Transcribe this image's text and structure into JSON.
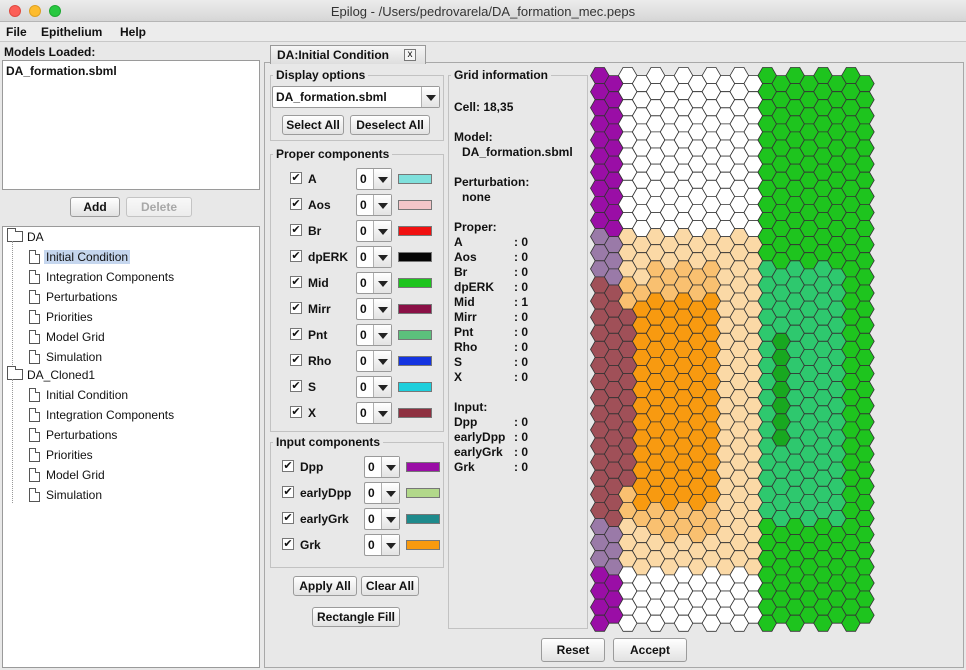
{
  "window": {
    "title": "Epilog - /Users/pedrovarela/DA_formation_mec.peps"
  },
  "menu": [
    "File",
    "Epithelium",
    "Help"
  ],
  "left": {
    "models_label": "Models Loaded:",
    "models": [
      "DA_formation.sbml"
    ],
    "add_label": "Add",
    "delete_label": "Delete",
    "tree": [
      {
        "label": "DA",
        "type": "folder",
        "children": [
          "Initial Condition",
          "Integration Components",
          "Perturbations",
          "Priorities",
          "Model Grid",
          "Simulation"
        ]
      },
      {
        "label": "DA_Cloned1",
        "type": "folder",
        "children": [
          "Initial Condition",
          "Integration Components",
          "Perturbations",
          "Priorities",
          "Model Grid",
          "Simulation"
        ]
      }
    ],
    "selected": "Initial Condition"
  },
  "tab": {
    "label": "DA:Initial Condition",
    "close_glyph": "x"
  },
  "display_options": {
    "title": "Display options",
    "model_selected": "DA_formation.sbml",
    "select_all": "Select All",
    "deselect_all": "Deselect All"
  },
  "proper_components": {
    "title": "Proper components",
    "items": [
      {
        "name": "A",
        "value": "0",
        "color": "#7fe0dc"
      },
      {
        "name": "Aos",
        "value": "0",
        "color": "#f4c6c9"
      },
      {
        "name": "Br",
        "value": "0",
        "color": "#f01010"
      },
      {
        "name": "dpERK",
        "value": "0",
        "color": "#050505"
      },
      {
        "name": "Mid",
        "value": "0",
        "color": "#1ec41e"
      },
      {
        "name": "Mirr",
        "value": "0",
        "color": "#8a1046"
      },
      {
        "name": "Pnt",
        "value": "0",
        "color": "#5cc07c"
      },
      {
        "name": "Rho",
        "value": "0",
        "color": "#1434e0"
      },
      {
        "name": "S",
        "value": "0",
        "color": "#1ecfdc"
      },
      {
        "name": "X",
        "value": "0",
        "color": "#8e3040"
      }
    ]
  },
  "input_components": {
    "title": "Input components",
    "items": [
      {
        "name": "Dpp",
        "value": "0",
        "color": "#9a0ea6"
      },
      {
        "name": "earlyDpp",
        "value": "0",
        "color": "#b2d88a"
      },
      {
        "name": "earlyGrk",
        "value": "0",
        "color": "#1e8a8c"
      },
      {
        "name": "Grk",
        "value": "0",
        "color": "#f89a10"
      }
    ]
  },
  "actions": {
    "apply_all": "Apply All",
    "clear_all": "Clear All",
    "rectangle_fill": "Rectangle Fill",
    "reset": "Reset",
    "accept": "Accept"
  },
  "grid_info": {
    "title": "Grid information",
    "cell": "Cell: 18,35",
    "model_label": "Model:",
    "model_value": "DA_formation.sbml",
    "perturbation_label": "Perturbation:",
    "perturbation_value": "none",
    "proper_label": "Proper:",
    "proper_values": [
      {
        "name": "A",
        "value": ": 0"
      },
      {
        "name": "Aos",
        "value": ": 0"
      },
      {
        "name": "Br",
        "value": ": 0"
      },
      {
        "name": "dpERK",
        "value": ": 0"
      },
      {
        "name": "Mid",
        "value": ": 1"
      },
      {
        "name": "Mirr",
        "value": ": 0"
      },
      {
        "name": "Pnt",
        "value": ": 0"
      },
      {
        "name": "Rho",
        "value": ": 0"
      },
      {
        "name": "S",
        "value": ": 0"
      },
      {
        "name": "X",
        "value": ": 0"
      }
    ],
    "input_label": "Input:",
    "input_values": [
      {
        "name": "Dpp",
        "value": ": 0"
      },
      {
        "name": "earlyDpp",
        "value": ": 0"
      },
      {
        "name": "earlyGrk",
        "value": ": 0"
      },
      {
        "name": "Grk",
        "value": ": 0"
      }
    ]
  },
  "hex_grid": {
    "columns": 20,
    "rows": 40,
    "colors": {
      "dpp": "#9a0ea6",
      "dpp_mix": "#9a7aa8",
      "dpp_grk": "#a05058",
      "grk": "#f89a10",
      "grk_light": "#fbd9a6",
      "grk_mid": "#f9c070",
      "mid": "#1ec41e",
      "mid_light": "#2ec86e",
      "mid_dark": "#18a820",
      "empty": "#ffffff"
    }
  }
}
